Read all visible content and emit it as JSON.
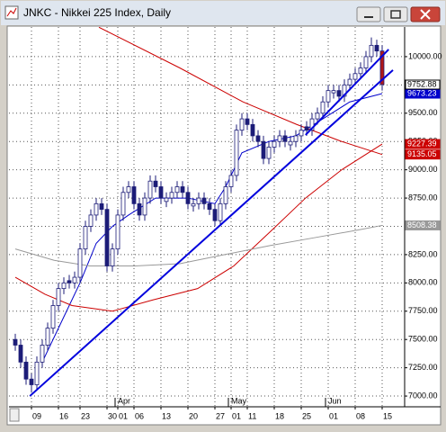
{
  "chart_data": {
    "type": "candlestick",
    "title": "JNKC - Nikkei 225 Index, Daily",
    "categories": [
      null,
      null,
      null,
      "09",
      null,
      null,
      null,
      null,
      "16",
      null,
      null,
      null,
      "23",
      null,
      null,
      null,
      null,
      "30",
      null,
      "01",
      null,
      null,
      "06",
      null,
      null,
      null,
      null,
      "13",
      null,
      null,
      null,
      null,
      "20",
      null,
      null,
      null,
      null,
      "27",
      null,
      null,
      "01",
      null,
      null,
      "11",
      null,
      null,
      null,
      null,
      "18",
      null,
      null,
      null,
      null,
      "25",
      null,
      null,
      null,
      null,
      "01",
      null,
      null,
      null,
      null,
      "08",
      null,
      null,
      null,
      null,
      "15"
    ],
    "month_labels": [
      {
        "index": 19,
        "label": "Apr"
      },
      {
        "index": 40,
        "label": "May"
      },
      {
        "index": 58,
        "label": "Jun"
      }
    ],
    "open": [
      7500,
      7450,
      7300,
      7150,
      7100,
      7300,
      7450,
      7600,
      7800,
      7950,
      8020,
      8000,
      8050,
      8300,
      8500,
      8600,
      8700,
      8650,
      8150,
      8300,
      8600,
      8800,
      8850,
      8700,
      8600,
      8750,
      8900,
      8850,
      8720,
      8750,
      8800,
      8850,
      8800,
      8680,
      8700,
      8750,
      8700,
      8650,
      8550,
      8700,
      8850,
      8950,
      9350,
      9450,
      9400,
      9300,
      9250,
      9100,
      9200,
      9250,
      9300,
      9220,
      9250,
      9300,
      9380,
      9350,
      9450,
      9500,
      9600,
      9680,
      9700,
      9650,
      9750,
      9800,
      9850,
      9900,
      10000,
      10100,
      10050
    ],
    "high": [
      7550,
      7500,
      7350,
      7200,
      7350,
      7500,
      7650,
      7850,
      8000,
      8050,
      8070,
      8100,
      8350,
      8550,
      8650,
      8750,
      8750,
      8700,
      8350,
      8650,
      8850,
      8900,
      8900,
      8750,
      8800,
      8950,
      8950,
      8900,
      8800,
      8850,
      8900,
      8900,
      8850,
      8750,
      8800,
      8800,
      8750,
      8700,
      8750,
      8900,
      9000,
      9400,
      9500,
      9500,
      9450,
      9350,
      9300,
      9250,
      9300,
      9350,
      9350,
      9300,
      9350,
      9400,
      9430,
      9500,
      9550,
      9650,
      9750,
      9750,
      9750,
      9800,
      9850,
      9900,
      9950,
      10050,
      10170,
      10150,
      10100
    ],
    "low": [
      7400,
      7250,
      7100,
      7030,
      7050,
      7250,
      7400,
      7550,
      7750,
      7900,
      7950,
      7950,
      8000,
      8250,
      8450,
      8550,
      8600,
      8100,
      8100,
      8250,
      8550,
      8750,
      8650,
      8550,
      8550,
      8700,
      8800,
      8700,
      8670,
      8700,
      8750,
      8750,
      8650,
      8630,
      8650,
      8650,
      8600,
      8500,
      8500,
      8650,
      8800,
      8900,
      9300,
      9350,
      9250,
      9200,
      9050,
      9050,
      9150,
      9200,
      9200,
      9170,
      9200,
      9250,
      9300,
      9300,
      9400,
      9450,
      9550,
      9630,
      9600,
      9600,
      9700,
      9750,
      9800,
      9850,
      9950,
      10000,
      9700
    ],
    "close": [
      7450,
      7300,
      7150,
      7100,
      7300,
      7450,
      7600,
      7800,
      7950,
      8000,
      8000,
      8050,
      8300,
      8500,
      8600,
      8700,
      8650,
      8150,
      8300,
      8600,
      8800,
      8850,
      8700,
      8600,
      8750,
      8900,
      8850,
      8750,
      8750,
      8800,
      8850,
      8800,
      8700,
      8700,
      8750,
      8700,
      8650,
      8550,
      8700,
      8850,
      8950,
      9350,
      9450,
      9400,
      9300,
      9250,
      9100,
      9200,
      9250,
      9300,
      9250,
      9250,
      9300,
      9350,
      9350,
      9450,
      9500,
      9600,
      9700,
      9700,
      9650,
      9750,
      9800,
      9850,
      9900,
      10000,
      10100,
      10050,
      9752.88
    ],
    "up_color": "#ffffff",
    "down_color": "#1c1c78",
    "lines": [
      {
        "color": "#0000cc",
        "x": [
          5,
          8,
          12,
          15,
          18,
          21,
          26,
          32,
          37,
          39,
          42,
          47,
          52,
          57,
          62,
          68
        ],
        "values": [
          7300,
          7600,
          8000,
          8350,
          8500,
          8600,
          8750,
          8750,
          8700,
          8850,
          9150,
          9250,
          9300,
          9450,
          9600,
          9673.23
        ]
      },
      {
        "color": "#cc0000",
        "x": [
          0,
          5.5,
          10.5,
          18,
          25.5,
          33.8,
          40.5,
          47.2,
          53.8,
          60.5,
          68
        ],
        "values": [
          8050,
          7900,
          7800,
          7750,
          7850,
          7950,
          8150,
          8450,
          8750,
          9000,
          9227.39
        ]
      },
      {
        "color": "#cc0000",
        "x": [
          15.5,
          30.5,
          42.2,
          52.2,
          60.5,
          68
        ],
        "values": [
          10260,
          9900,
          9600,
          9400,
          9250,
          9135.05
        ]
      },
      {
        "color": "#999999",
        "x": [
          0,
          7.2,
          13.8,
          22.2,
          30.5,
          38.8,
          47.2,
          55.5,
          63.8,
          68
        ],
        "values": [
          8300,
          8200,
          8150,
          8150,
          8170,
          8250,
          8330,
          8400,
          8470,
          8508.38
        ]
      }
    ],
    "trendlines": [
      {
        "color": "#0000dd",
        "x": [
          2.7,
          70
        ],
        "values": [
          7000,
          9881
        ]
      },
      {
        "color": "#0000dd",
        "x": [
          53.8,
          69.2
        ],
        "values": [
          9308,
          10064
        ]
      }
    ],
    "price_labels": [
      {
        "value": 9673.23,
        "label": "9673.23",
        "color": "#0000cc"
      },
      {
        "value": 9752.88,
        "label": "9752.88",
        "color": "#ffffff"
      },
      {
        "value": 9227.39,
        "label": "9227.39",
        "color": "#cc0000"
      },
      {
        "value": 9135.05,
        "label": "9135.05",
        "color": "#cc0000"
      },
      {
        "value": 8508.38,
        "label": "8508.38",
        "color": "#999999"
      }
    ],
    "ylim": [
      6905,
      10262
    ],
    "yticks": [
      {
        "value": 7000,
        "label": "7000.00"
      },
      {
        "value": 7250,
        "label": "7250.00"
      },
      {
        "value": 7500,
        "label": "7500.00"
      },
      {
        "value": 7750,
        "label": "7750.00"
      },
      {
        "value": 8000,
        "label": "8000.00"
      },
      {
        "value": 8250,
        "label": "8250.00"
      },
      {
        "value": 8500,
        "label": "8500.00"
      },
      {
        "value": 8750,
        "label": "8750.00"
      },
      {
        "value": 9000,
        "label": "9000.00"
      },
      {
        "value": 9250,
        "label": "9250.00"
      },
      {
        "value": 9500,
        "label": "9500.00"
      },
      {
        "value": 9750,
        "label": "9750.00"
      },
      {
        "value": 10000,
        "label": "10000.00"
      }
    ],
    "grid": true
  }
}
